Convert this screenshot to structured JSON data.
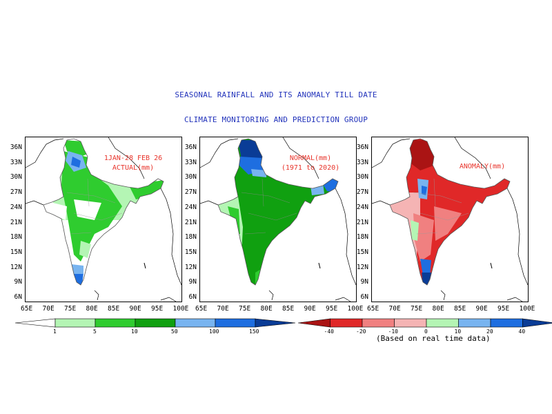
{
  "header": {
    "title": "SEASONAL RAINFALL AND ITS ANOMALY TILL DATE",
    "subtitle": "CLIMATE MONITORING AND PREDICTION GROUP"
  },
  "panels": [
    {
      "label_line1": "1JAN-28 FEB 26",
      "label_line2": "ACTUAL(mm)"
    },
    {
      "label_line1": "NORMAL(mm)",
      "label_line2": "(1971 to 2020)"
    },
    {
      "label_line1": "ANOMALY(mm)",
      "label_line2": ""
    }
  ],
  "axes": {
    "lat_labels": [
      "36N",
      "33N",
      "30N",
      "27N",
      "24N",
      "21N",
      "18N",
      "15N",
      "12N",
      "9N",
      "6N"
    ],
    "lon_labels": [
      "65E",
      "70E",
      "75E",
      "80E",
      "85E",
      "90E",
      "95E",
      "100E"
    ]
  },
  "rain_legend": {
    "ticks": [
      "1",
      "5",
      "10",
      "50",
      "100",
      "150"
    ],
    "colors": [
      "#ffffff",
      "#b4f5b4",
      "#2fcc2f",
      "#10a010",
      "#78b4f0",
      "#1e6ee0",
      "#0a3c96"
    ]
  },
  "anomaly_legend": {
    "ticks": [
      "-40",
      "-20",
      "-10",
      "0",
      "10",
      "20",
      "40"
    ],
    "colors": [
      "#aa1414",
      "#e02828",
      "#f08080",
      "#f5b4b4",
      "#b4f5b4",
      "#78b4f0",
      "#1e6ee0",
      "#0a3c96"
    ],
    "note": "(Based on real time data)"
  },
  "colors": {
    "title": "#2233bb",
    "panel_label": "#e8332a"
  }
}
